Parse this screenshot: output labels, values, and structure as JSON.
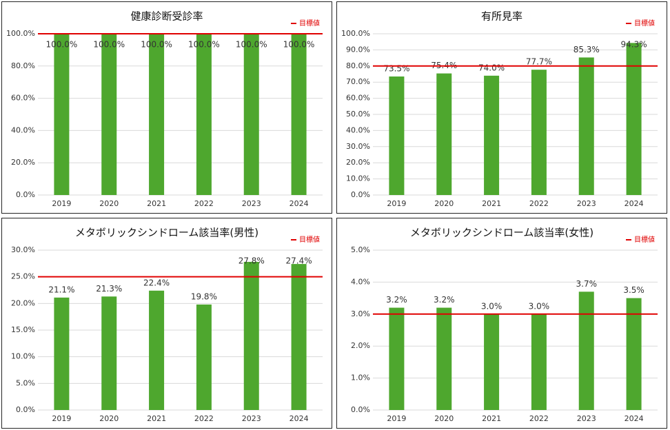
{
  "chart_data": [
    {
      "type": "bar",
      "title": "健康診断受診率",
      "categories": [
        "2019",
        "2020",
        "2021",
        "2022",
        "2023",
        "2024"
      ],
      "values": [
        100,
        100,
        100,
        100,
        100,
        100
      ],
      "value_labels": [
        "100.0%",
        "100.0%",
        "100.0%",
        "100.0%",
        "100.0%",
        "100.0%"
      ],
      "color": "#4ea72e",
      "ylim": [
        0,
        100
      ],
      "yticks": [
        {
          "value": 0,
          "label": "0.0%"
        },
        {
          "value": 20,
          "label": "20.0%"
        },
        {
          "value": 40,
          "label": "40.0%"
        },
        {
          "value": 60,
          "label": "60.0%"
        },
        {
          "value": 80,
          "label": "80.0%"
        },
        {
          "value": 100,
          "label": "100.0%"
        }
      ],
      "grid": true,
      "target": {
        "name": "目標値",
        "value": 100,
        "color": "#e00000"
      }
    },
    {
      "type": "bar",
      "title": "有所見率",
      "categories": [
        "2019",
        "2020",
        "2021",
        "2022",
        "2023",
        "2024"
      ],
      "values": [
        73.5,
        75.4,
        74.0,
        77.7,
        85.3,
        94.3
      ],
      "value_labels": [
        "73.5%",
        "75.4%",
        "74.0%",
        "77.7%",
        "85.3%",
        "94.3%"
      ],
      "color": "#4ea72e",
      "ylim": [
        0,
        100
      ],
      "yticks": [
        {
          "value": 0,
          "label": "0.0%"
        },
        {
          "value": 10,
          "label": "10.0%"
        },
        {
          "value": 20,
          "label": "20.0%"
        },
        {
          "value": 30,
          "label": "30.0%"
        },
        {
          "value": 40,
          "label": "40.0%"
        },
        {
          "value": 50,
          "label": "50.0%"
        },
        {
          "value": 60,
          "label": "60.0%"
        },
        {
          "value": 70,
          "label": "70.0%"
        },
        {
          "value": 80,
          "label": "80.0%"
        },
        {
          "value": 90,
          "label": "90.0%"
        },
        {
          "value": 100,
          "label": "100.0%"
        }
      ],
      "grid": true,
      "target": {
        "name": "目標値",
        "value": 80,
        "color": "#e00000"
      }
    },
    {
      "type": "bar",
      "title": "メタボリックシンドローム該当率(男性)",
      "categories": [
        "2019",
        "2020",
        "2021",
        "2022",
        "2023",
        "2024"
      ],
      "values": [
        21.1,
        21.3,
        22.4,
        19.8,
        27.8,
        27.4
      ],
      "value_labels": [
        "21.1%",
        "21.3%",
        "22.4%",
        "19.8%",
        "27.8%",
        "27.4%"
      ],
      "color": "#4ea72e",
      "ylim": [
        0,
        30
      ],
      "yticks": [
        {
          "value": 0,
          "label": "0.0%"
        },
        {
          "value": 5,
          "label": "5.0%"
        },
        {
          "value": 10,
          "label": "10.0%"
        },
        {
          "value": 15,
          "label": "15.0%"
        },
        {
          "value": 20,
          "label": "20.0%"
        },
        {
          "value": 25,
          "label": "25.0%"
        },
        {
          "value": 30,
          "label": "30.0%"
        }
      ],
      "grid": true,
      "target": {
        "name": "目標値",
        "value": 25,
        "color": "#e00000"
      }
    },
    {
      "type": "bar",
      "title": "メタボリックシンドローム該当率(女性)",
      "categories": [
        "2019",
        "2020",
        "2021",
        "2022",
        "2023",
        "2024"
      ],
      "values": [
        3.2,
        3.2,
        3.0,
        3.0,
        3.7,
        3.5
      ],
      "value_labels": [
        "3.2%",
        "3.2%",
        "3.0%",
        "3.0%",
        "3.7%",
        "3.5%"
      ],
      "color": "#4ea72e",
      "ylim": [
        0,
        5
      ],
      "yticks": [
        {
          "value": 0,
          "label": "0.0%"
        },
        {
          "value": 1,
          "label": "1.0%"
        },
        {
          "value": 2,
          "label": "2.0%"
        },
        {
          "value": 3,
          "label": "3.0%"
        },
        {
          "value": 4,
          "label": "4.0%"
        },
        {
          "value": 5,
          "label": "5.0%"
        }
      ],
      "grid": true,
      "target": {
        "name": "目標値",
        "value": 3,
        "color": "#e00000"
      }
    }
  ]
}
